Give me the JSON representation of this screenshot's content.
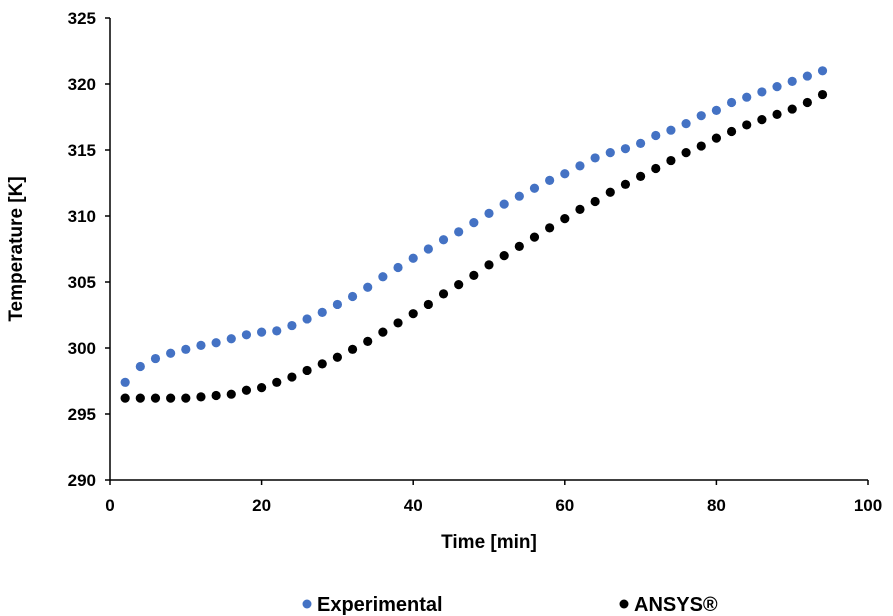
{
  "chart_data": {
    "type": "scatter",
    "xlabel": "Time [min]",
    "ylabel": "Temperature [K]",
    "xlim": [
      0,
      100
    ],
    "ylim": [
      290,
      325
    ],
    "x_ticks": [
      "0",
      "20",
      "40",
      "60",
      "80",
      "100"
    ],
    "y_ticks": [
      "290",
      "295",
      "300",
      "305",
      "310",
      "315",
      "320",
      "325"
    ],
    "grid": false,
    "legend": "bottom",
    "series": [
      {
        "name": "Experimental",
        "color": "#4472c4",
        "x": [
          2,
          4,
          6,
          8,
          10,
          12,
          14,
          16,
          18,
          20,
          22,
          24,
          26,
          28,
          30,
          32,
          34,
          36,
          38,
          40,
          42,
          44,
          46,
          48,
          50,
          52,
          54,
          56,
          58,
          60,
          62,
          64,
          66,
          68,
          70,
          72,
          74,
          76,
          78,
          80,
          82,
          84,
          86,
          88,
          90,
          92,
          94
        ],
        "y": [
          297.4,
          298.6,
          299.2,
          299.6,
          299.9,
          300.2,
          300.4,
          300.7,
          301.0,
          301.2,
          301.3,
          301.7,
          302.2,
          302.7,
          303.3,
          303.9,
          304.6,
          305.4,
          306.1,
          306.8,
          307.5,
          308.2,
          308.8,
          309.5,
          310.2,
          310.9,
          311.5,
          312.1,
          312.7,
          313.2,
          313.8,
          314.4,
          314.8,
          315.1,
          315.5,
          316.1,
          316.5,
          317.0,
          317.6,
          318.0,
          318.6,
          319.0,
          319.4,
          319.8,
          320.2,
          320.6,
          321.0
        ]
      },
      {
        "name": "ANSYS®",
        "color": "#000000",
        "x": [
          2,
          4,
          6,
          8,
          10,
          12,
          14,
          16,
          18,
          20,
          22,
          24,
          26,
          28,
          30,
          32,
          34,
          36,
          38,
          40,
          42,
          44,
          46,
          48,
          50,
          52,
          54,
          56,
          58,
          60,
          62,
          64,
          66,
          68,
          70,
          72,
          74,
          76,
          78,
          80,
          82,
          84,
          86,
          88,
          90,
          92,
          94
        ],
        "y": [
          296.2,
          296.2,
          296.2,
          296.2,
          296.2,
          296.3,
          296.4,
          296.5,
          296.8,
          297.0,
          297.4,
          297.8,
          298.3,
          298.8,
          299.3,
          299.9,
          300.5,
          301.2,
          301.9,
          302.6,
          303.3,
          304.1,
          304.8,
          305.5,
          306.3,
          307.0,
          307.7,
          308.4,
          309.1,
          309.8,
          310.5,
          311.1,
          311.8,
          312.4,
          313.0,
          313.6,
          314.2,
          314.8,
          315.3,
          315.9,
          316.4,
          316.9,
          317.3,
          317.7,
          318.1,
          318.6,
          319.2
        ]
      }
    ]
  }
}
